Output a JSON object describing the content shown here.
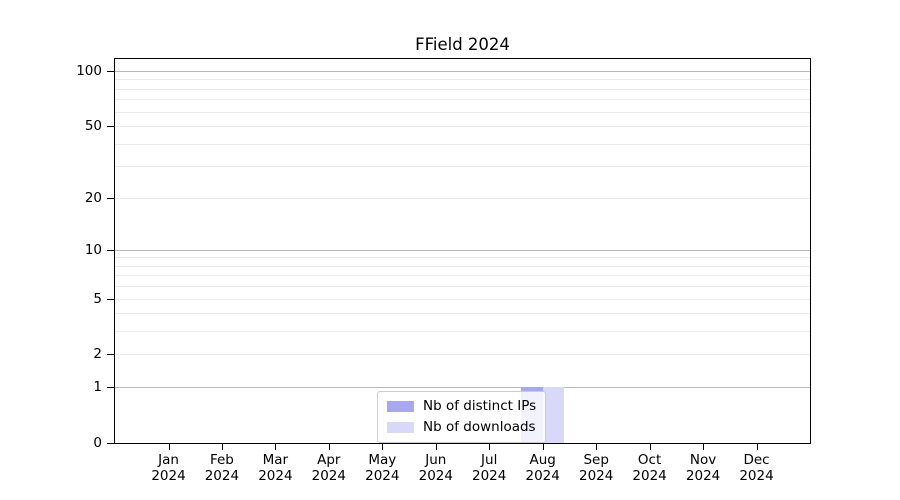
{
  "chart_data": {
    "type": "bar",
    "title": "FField 2024",
    "categories": [
      "Jan",
      "Feb",
      "Mar",
      "Apr",
      "May",
      "Jun",
      "Jul",
      "Aug",
      "Sep",
      "Oct",
      "Nov",
      "Dec"
    ],
    "x_tick_year": "2024",
    "series": [
      {
        "name": "Nb of distinct IPs",
        "color": "#a8a8f0",
        "values": [
          0,
          0,
          0,
          0,
          0,
          0,
          0,
          1,
          0,
          0,
          0,
          0
        ]
      },
      {
        "name": "Nb of downloads",
        "color": "#d8d8f8",
        "values": [
          0,
          0,
          0,
          0,
          0,
          0,
          0,
          1,
          0,
          0,
          0,
          0
        ]
      }
    ],
    "y_axis": {
      "scale": "log1p",
      "max": 116,
      "tick_labels": [
        "100",
        "50",
        "20",
        "10",
        "5",
        "2",
        "1",
        "0"
      ],
      "tick_values": [
        100,
        50,
        20,
        10,
        5,
        2,
        1,
        0
      ],
      "major_gridlines": [
        1,
        10,
        100
      ],
      "minor_gridlines": [
        2,
        3,
        4,
        5,
        6,
        7,
        8,
        9,
        20,
        30,
        40,
        50,
        60,
        70,
        80,
        90
      ]
    },
    "legend": {
      "entries": [
        "Nb of distinct IPs",
        "Nb of downloads"
      ],
      "position": "lower center"
    },
    "colors": {
      "major_grid": "#b8b8b8",
      "minor_grid": "#ebebeb",
      "axis_line": "#000000",
      "text": "#000000",
      "legend_border": "#cccccc",
      "background": "#ffffff"
    }
  }
}
